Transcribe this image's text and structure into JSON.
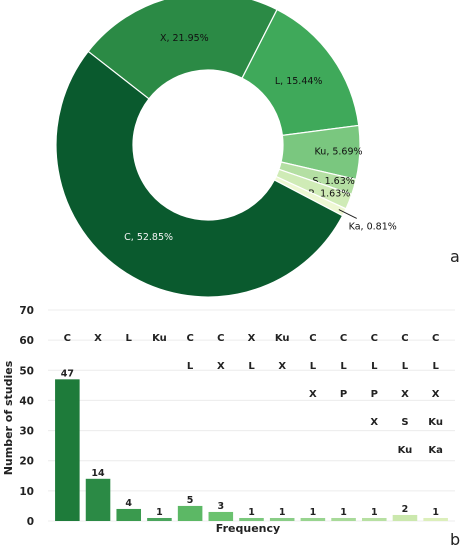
{
  "chart_data": [
    {
      "type": "pie",
      "style": "donut",
      "panel_label": "a",
      "slices": [
        {
          "label": "X",
          "value": 21.95,
          "display": "X, 21.95%",
          "color": "#2b8a45"
        },
        {
          "label": "L",
          "value": 15.44,
          "display": "L, 15.44%",
          "color": "#3fa95a"
        },
        {
          "label": "Ku",
          "value": 5.69,
          "display": "Ku, 5.69%",
          "color": "#7ac77f"
        },
        {
          "label": "S",
          "value": 1.63,
          "display": "S, 1.63%",
          "color": "#b4dfa3"
        },
        {
          "label": "P",
          "value": 1.63,
          "display": "P, 1.63%",
          "color": "#cfebb6"
        },
        {
          "label": "Ka",
          "value": 0.81,
          "display": "Ka, 0.81%",
          "color": "#eef8d3"
        },
        {
          "label": "C",
          "value": 52.85,
          "display": "C, 52.85%",
          "color": "#0a5a2e"
        }
      ]
    },
    {
      "type": "bar",
      "panel_label": "b",
      "xlabel": "Frequency",
      "ylabel": "Number of studies",
      "ylim": [
        0,
        70
      ],
      "yticks": [
        0,
        10,
        20,
        30,
        40,
        50,
        60,
        70
      ],
      "grid": "horizontal",
      "categories": [
        "C",
        "X",
        "L",
        "Ku",
        "C,L",
        "C,X",
        "X,L",
        "Ku,X",
        "C,L,X",
        "C,L,P",
        "C,L,P,X",
        "C,L,X,S,Ku",
        "C,L,X,Ku,Ka"
      ],
      "category_labels": [
        [
          "C"
        ],
        [
          "X"
        ],
        [
          "L"
        ],
        [
          "Ku"
        ],
        [
          "C",
          "L"
        ],
        [
          "C",
          "X"
        ],
        [
          "X",
          "L"
        ],
        [
          "Ku",
          "X"
        ],
        [
          "C",
          "L",
          "X"
        ],
        [
          "C",
          "L",
          "P"
        ],
        [
          "C",
          "L",
          "P",
          "X"
        ],
        [
          "C",
          "L",
          "X",
          "S",
          "Ku"
        ],
        [
          "C",
          "L",
          "X",
          "Ku",
          "Ka"
        ]
      ],
      "values": [
        47,
        14,
        4,
        1,
        5,
        3,
        1,
        1,
        1,
        1,
        1,
        2,
        1
      ],
      "colors": [
        "#1e7b3a",
        "#2b8a45",
        "#3a9a4e",
        "#4aa55c",
        "#5cb865",
        "#6bc26f",
        "#7ac87c",
        "#89cd86",
        "#98d48f",
        "#a8da99",
        "#b7e0a2",
        "#cbe8ad",
        "#dcefbb"
      ]
    }
  ]
}
